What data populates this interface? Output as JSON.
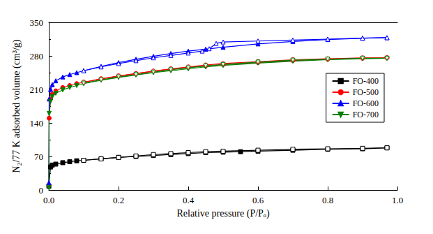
{
  "chart_data": {
    "type": "line",
    "x_label": "Relative pressure (P/Pₒ)",
    "y_label": "N₂/77 K adsorbed volume (cm³/g)",
    "xlim": [
      0,
      1.0
    ],
    "xticks": [
      {
        "value": 0,
        "label": "0.0"
      },
      {
        "value": 0.2,
        "label": "0.2"
      },
      {
        "value": 0.4,
        "label": "0.4"
      },
      {
        "value": 0.6,
        "label": "0.6"
      },
      {
        "value": 0.8,
        "label": "0.8"
      },
      {
        "value": 1.0,
        "label": "1.0"
      }
    ],
    "ylim": [
      0,
      350
    ],
    "yticks": [
      0,
      70,
      140,
      210,
      280,
      350
    ],
    "grid": false,
    "legend": "right",
    "series": [
      {
        "name": "FO-400",
        "color": "#000000",
        "marker": "square",
        "x": [
          0.0002,
          0.005,
          0.01,
          0.02,
          0.04,
          0.06,
          0.08,
          0.1,
          0.15,
          0.2,
          0.25,
          0.3,
          0.35,
          0.4,
          0.45,
          0.5,
          0.55,
          0.6,
          0.7,
          0.8,
          0.9,
          0.97
        ],
        "values": [
          8,
          48,
          52,
          54,
          57,
          59,
          61,
          62,
          65,
          68,
          70,
          72,
          74,
          76,
          78,
          79,
          80,
          81,
          83,
          85,
          86,
          88
        ],
        "desorption": {
          "x": [
            0.97,
            0.9,
            0.8,
            0.7,
            0.6,
            0.5,
            0.45,
            0.4,
            0.35,
            0.3,
            0.25,
            0.2,
            0.15,
            0.1
          ],
          "values": [
            88,
            87,
            86,
            85,
            83,
            81,
            80,
            78,
            76,
            74,
            71,
            68,
            65,
            62
          ]
        }
      },
      {
        "name": "FO-500",
        "color": "#ff0000",
        "marker": "circle",
        "x": [
          0.0002,
          0.001,
          0.005,
          0.01,
          0.02,
          0.04,
          0.06,
          0.08,
          0.1,
          0.15,
          0.2,
          0.25,
          0.3,
          0.35,
          0.4,
          0.45,
          0.5,
          0.6,
          0.7,
          0.8,
          0.9,
          0.97
        ],
        "values": [
          10,
          150,
          190,
          200,
          207,
          214,
          218,
          222,
          225,
          232,
          238,
          243,
          248,
          252,
          256,
          259,
          262,
          266,
          270,
          273,
          275,
          276
        ],
        "desorption": {
          "x": [
            0.97,
            0.9,
            0.8,
            0.7,
            0.6,
            0.5,
            0.45,
            0.4,
            0.35,
            0.3,
            0.25,
            0.2,
            0.15,
            0.1
          ],
          "values": [
            276,
            276,
            274,
            272,
            268,
            264,
            261,
            257,
            253,
            248,
            243,
            238,
            232,
            225
          ]
        }
      },
      {
        "name": "FO-600",
        "color": "#0000ff",
        "marker": "triangle_up",
        "x": [
          0.0002,
          0.001,
          0.005,
          0.01,
          0.02,
          0.04,
          0.06,
          0.08,
          0.1,
          0.15,
          0.2,
          0.25,
          0.3,
          0.35,
          0.4,
          0.45,
          0.5,
          0.6,
          0.7,
          0.8,
          0.9,
          0.97
        ],
        "values": [
          15,
          190,
          210,
          220,
          228,
          236,
          241,
          245,
          249,
          258,
          266,
          273,
          279,
          285,
          290,
          294,
          298,
          305,
          310,
          314,
          317,
          318
        ],
        "desorption": {
          "x": [
            0.97,
            0.9,
            0.8,
            0.7,
            0.6,
            0.5,
            0.48,
            0.46,
            0.44,
            0.4,
            0.35,
            0.3,
            0.25,
            0.2,
            0.15,
            0.1
          ],
          "values": [
            318,
            317,
            315,
            313,
            311,
            309,
            306,
            295,
            290,
            286,
            281,
            276,
            270,
            264,
            257,
            249
          ]
        }
      },
      {
        "name": "FO-700",
        "color": "#008000",
        "marker": "triangle_down",
        "x": [
          0.0002,
          0.001,
          0.005,
          0.01,
          0.02,
          0.04,
          0.06,
          0.08,
          0.1,
          0.15,
          0.2,
          0.25,
          0.3,
          0.35,
          0.4,
          0.45,
          0.5,
          0.6,
          0.7,
          0.8,
          0.9,
          0.97
        ],
        "values": [
          5,
          160,
          185,
          195,
          202,
          209,
          214,
          218,
          222,
          229,
          235,
          240,
          245,
          249,
          253,
          257,
          260,
          265,
          269,
          272,
          274,
          275
        ],
        "desorption": {
          "x": [
            0.97,
            0.9,
            0.8,
            0.7,
            0.6,
            0.5,
            0.45,
            0.4,
            0.35,
            0.3,
            0.25,
            0.2,
            0.15,
            0.1
          ],
          "values": [
            275,
            275,
            273,
            271,
            267,
            262,
            259,
            255,
            251,
            246,
            241,
            236,
            230,
            223
          ]
        }
      }
    ]
  }
}
